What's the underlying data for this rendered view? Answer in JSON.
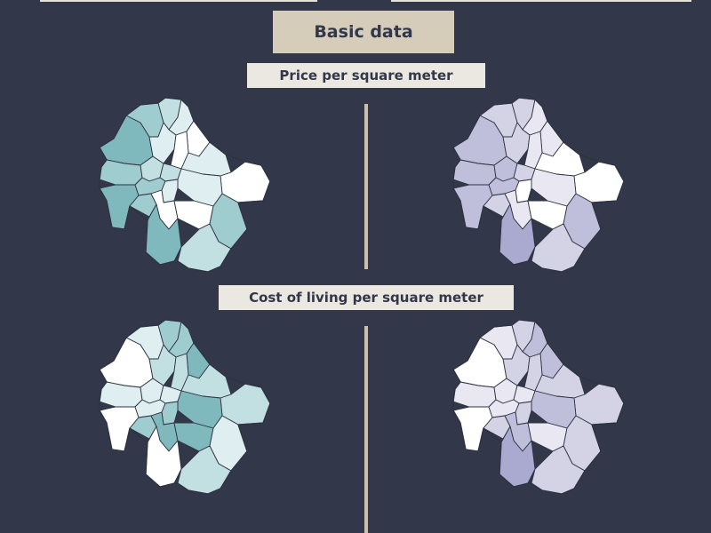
{
  "heading": "Basic data",
  "sections": {
    "price": "Price per square meter",
    "cost": "Cost of living per square meter"
  },
  "colors": {
    "background": "#323849",
    "heading_box": "#d6ccba",
    "label_box": "#ebe7e1",
    "divider": "#cdbfa9",
    "teal_ramp": [
      "#ffffff",
      "#dfeef0",
      "#c2dfe1",
      "#9fcccf",
      "#7fb9bd"
    ],
    "lavender_ramp": [
      "#ffffff",
      "#e9e8f2",
      "#d4d3e6",
      "#c0bfdb",
      "#aaa9cf"
    ]
  },
  "maps": [
    {
      "name": "price-map-left",
      "ramp": "teal_ramp",
      "levels": [
        4,
        3,
        2,
        1,
        0,
        3,
        4,
        2,
        1,
        0,
        2,
        3,
        3,
        1,
        0,
        1,
        1,
        0,
        0,
        4,
        3,
        2
      ]
    },
    {
      "name": "price-map-right",
      "ramp": "lavender_ramp",
      "levels": [
        3,
        2,
        2,
        1,
        1,
        3,
        3,
        3,
        2,
        1,
        2,
        3,
        2,
        0,
        0,
        1,
        0,
        1,
        0,
        4,
        3,
        2
      ]
    },
    {
      "name": "cost-map-left",
      "ramp": "teal_ramp",
      "levels": [
        0,
        1,
        3,
        3,
        4,
        1,
        0,
        1,
        2,
        2,
        1,
        1,
        3,
        2,
        2,
        4,
        3,
        4,
        4,
        0,
        1,
        2
      ]
    },
    {
      "name": "cost-map-right",
      "ramp": "lavender_ramp",
      "levels": [
        0,
        1,
        2,
        3,
        3,
        1,
        0,
        1,
        2,
        2,
        1,
        1,
        2,
        2,
        2,
        3,
        2,
        3,
        1,
        4,
        2,
        2
      ]
    }
  ]
}
